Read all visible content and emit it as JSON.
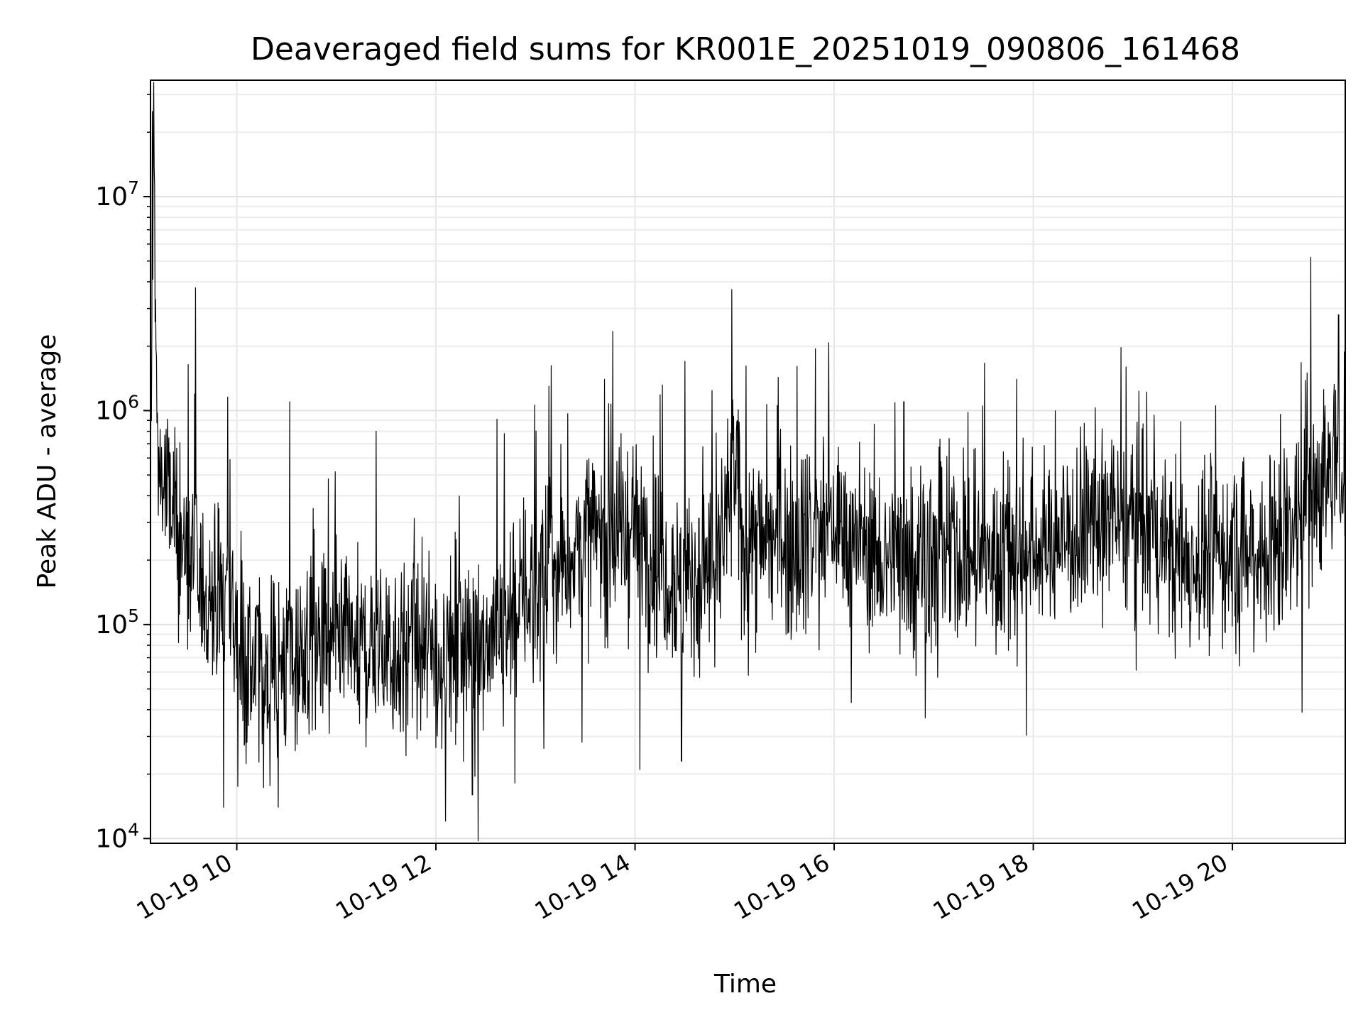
{
  "chart_data": {
    "type": "line",
    "title": "Deaveraged field sums for KR001E_20251019_090806_161468",
    "xlabel": "Time",
    "ylabel": "Peak ADU - average",
    "x_axis": {
      "type": "datetime",
      "range": [
        "2025-10-19 09:08",
        "2025-10-19 21:08"
      ],
      "ticks": [
        "2025-10-19 10:00",
        "2025-10-19 12:00",
        "2025-10-19 14:00",
        "2025-10-19 16:00",
        "2025-10-19 18:00",
        "2025-10-19 20:00"
      ],
      "tick_labels": [
        "10-19 10",
        "10-19 12",
        "10-19 14",
        "10-19 16",
        "10-19 18",
        "10-19 20"
      ]
    },
    "y_axis": {
      "scale": "log",
      "range": [
        9500,
        35000000
      ],
      "ticks": [
        10000,
        100000,
        1000000,
        10000000
      ],
      "tick_labels": [
        {
          "base": "10",
          "exp": "4"
        },
        {
          "base": "10",
          "exp": "5"
        },
        {
          "base": "10",
          "exp": "6"
        },
        {
          "base": "10",
          "exp": "7"
        }
      ]
    },
    "grid": true,
    "series": [
      {
        "color": "#000000",
        "points": [
          [
            "2025-10-19 09:08",
            320000
          ],
          [
            "2025-10-19 09:10",
            25000000
          ],
          [
            "2025-10-19 09:12",
            600000
          ],
          [
            "2025-10-19 09:20",
            350000
          ],
          [
            "2025-10-19 09:30",
            200000
          ],
          [
            "2025-10-19 09:40",
            140000
          ],
          [
            "2025-10-19 09:50",
            120000
          ],
          [
            "2025-10-19 09:55",
            180000
          ],
          [
            "2025-10-19 10:00",
            80000
          ],
          [
            "2025-10-19 10:10",
            60000
          ],
          [
            "2025-10-19 10:30",
            70000
          ],
          [
            "2025-10-19 11:00",
            75000
          ],
          [
            "2025-10-19 11:30",
            80000
          ],
          [
            "2025-10-19 12:00",
            70000
          ],
          [
            "2025-10-19 12:30",
            90000
          ],
          [
            "2025-10-19 13:00",
            150000
          ],
          [
            "2025-10-19 13:30",
            250000
          ],
          [
            "2025-10-19 14:00",
            280000
          ],
          [
            "2025-10-19 14:30",
            150000
          ],
          [
            "2025-10-19 14:50",
            200000
          ],
          [
            "2025-10-19 15:00",
            500000
          ],
          [
            "2025-10-19 15:05",
            250000
          ],
          [
            "2025-10-19 15:30",
            250000
          ],
          [
            "2025-10-19 16:00",
            300000
          ],
          [
            "2025-10-19 16:30",
            200000
          ],
          [
            "2025-10-19 17:00",
            220000
          ],
          [
            "2025-10-19 17:30",
            200000
          ],
          [
            "2025-10-19 18:00",
            230000
          ],
          [
            "2025-10-19 18:30",
            280000
          ],
          [
            "2025-10-19 19:00",
            300000
          ],
          [
            "2025-10-19 19:30",
            200000
          ],
          [
            "2025-10-19 20:00",
            220000
          ],
          [
            "2025-10-19 20:30",
            230000
          ],
          [
            "2025-10-19 20:40",
            350000
          ],
          [
            "2025-10-19 21:00",
            550000
          ],
          [
            "2025-10-19 21:08",
            600000
          ]
        ],
        "notable_spikes": [
          [
            "2025-10-19 09:09",
            25000000
          ],
          [
            "2025-10-19 10:32",
            1100000
          ],
          [
            "2025-10-19 13:08",
            1300000
          ],
          [
            "2025-10-19 14:30",
            1700000
          ],
          [
            "2025-10-19 16:42",
            1100000
          ],
          [
            "2025-10-19 20:45",
            1500000
          ],
          [
            "2025-10-19 21:04",
            2800000
          ]
        ],
        "notable_dips": [
          [
            "2025-10-19 09:52",
            14000
          ],
          [
            "2025-10-19 10:25",
            14000
          ],
          [
            "2025-10-19 12:22",
            16000
          ],
          [
            "2025-10-19 14:03",
            21000
          ],
          [
            "2025-10-19 14:28",
            23000
          ]
        ]
      }
    ]
  }
}
